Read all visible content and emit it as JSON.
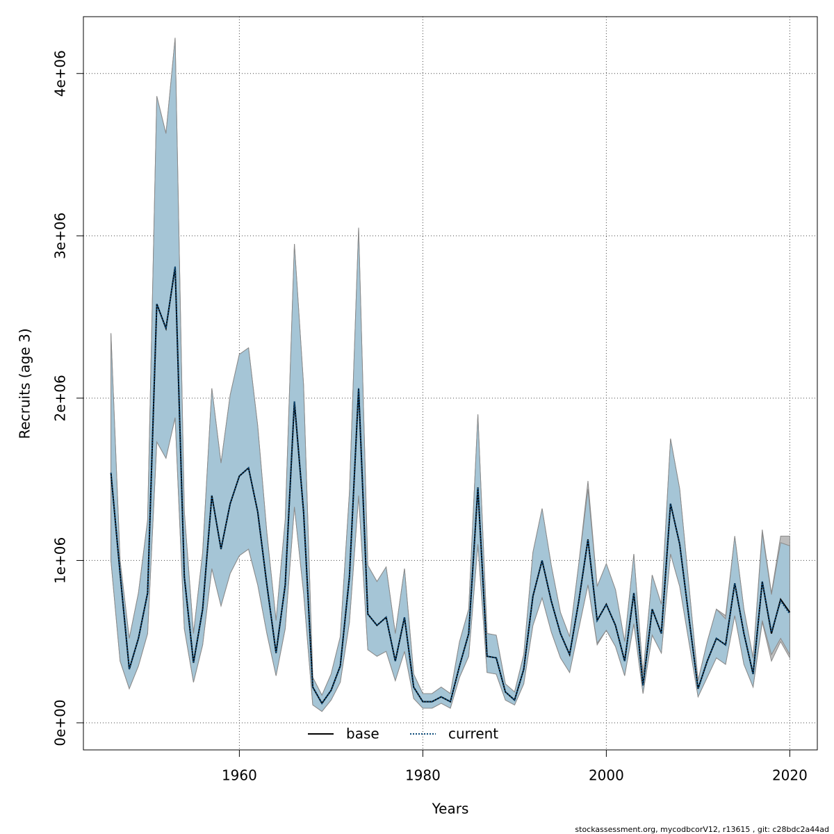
{
  "chart_data": {
    "type": "line",
    "xlabel": "Years",
    "ylabel": "Recruits (age 3)",
    "footer": "stockassessment.org, mycodbcorV12, r13615 , git: c28bdc2a44ad",
    "x": [
      1946,
      1947,
      1948,
      1949,
      1950,
      1951,
      1952,
      1953,
      1954,
      1955,
      1956,
      1957,
      1958,
      1959,
      1960,
      1961,
      1962,
      1963,
      1964,
      1965,
      1966,
      1967,
      1968,
      1969,
      1970,
      1971,
      1972,
      1973,
      1974,
      1975,
      1976,
      1977,
      1978,
      1979,
      1980,
      1981,
      1982,
      1983,
      1984,
      1985,
      1986,
      1987,
      1988,
      1989,
      1990,
      1991,
      1992,
      1993,
      1994,
      1995,
      1996,
      1997,
      1998,
      1999,
      2000,
      2001,
      2002,
      2003,
      2004,
      2005,
      2006,
      2007,
      2008,
      2009,
      2010,
      2011,
      2012,
      2013,
      2014,
      2015,
      2016,
      2017,
      2018,
      2019,
      2020
    ],
    "xlim": [
      1943,
      2023
    ],
    "ylim": [
      -167000,
      4350000
    ],
    "xticks": [
      1960,
      1980,
      2000,
      2020
    ],
    "yticks": [
      {
        "value": 0,
        "label": "0e+00"
      },
      {
        "value": 1000000,
        "label": "1e+06"
      },
      {
        "value": 2000000,
        "label": "2e+06"
      },
      {
        "value": 3000000,
        "label": "3e+06"
      },
      {
        "value": 4000000,
        "label": "4e+06"
      }
    ],
    "grid": true,
    "legend": "bottom",
    "series": [
      {
        "name": "base",
        "color": "#000000",
        "band_color": "#bdbdbd",
        "dash": false,
        "values": [
          1540000,
          920000,
          330000,
          520000,
          800000,
          2580000,
          2430000,
          2810000,
          900000,
          370000,
          700000,
          1400000,
          1070000,
          1350000,
          1520000,
          1570000,
          1300000,
          850000,
          430000,
          850000,
          1980000,
          1300000,
          220000,
          120000,
          200000,
          350000,
          900000,
          2060000,
          670000,
          600000,
          650000,
          380000,
          650000,
          220000,
          130000,
          130000,
          160000,
          130000,
          350000,
          550000,
          1450000,
          410000,
          400000,
          190000,
          140000,
          330000,
          780000,
          1000000,
          750000,
          550000,
          420000,
          750000,
          1130000,
          630000,
          730000,
          600000,
          380000,
          800000,
          230000,
          700000,
          550000,
          1350000,
          1100000,
          650000,
          210000,
          380000,
          520000,
          480000,
          860000,
          550000,
          300000,
          870000,
          550000,
          760000,
          680000
        ],
        "upper": [
          2400000,
          1000000,
          520000,
          800000,
          1250000,
          3860000,
          3630000,
          4220000,
          1300000,
          550000,
          1050000,
          2060000,
          1600000,
          2020000,
          2270000,
          2310000,
          1830000,
          1170000,
          630000,
          1250000,
          2950000,
          2080000,
          280000,
          170000,
          300000,
          530000,
          1420000,
          3050000,
          970000,
          870000,
          960000,
          550000,
          950000,
          300000,
          180000,
          180000,
          220000,
          180000,
          500000,
          700000,
          1900000,
          550000,
          540000,
          240000,
          190000,
          420000,
          1050000,
          1320000,
          970000,
          680000,
          530000,
          980000,
          1490000,
          840000,
          980000,
          820000,
          500000,
          1040000,
          300000,
          910000,
          730000,
          1750000,
          1440000,
          850000,
          260000,
          500000,
          700000,
          660000,
          1150000,
          700000,
          400000,
          1190000,
          800000,
          1150000,
          1150000
        ],
        "lower": [
          1000000,
          380000,
          210000,
          350000,
          550000,
          1730000,
          1630000,
          1880000,
          580000,
          250000,
          480000,
          950000,
          720000,
          920000,
          1030000,
          1070000,
          850000,
          550000,
          290000,
          580000,
          1330000,
          800000,
          110000,
          70000,
          140000,
          250000,
          620000,
          1400000,
          450000,
          410000,
          440000,
          260000,
          440000,
          150000,
          90000,
          90000,
          120000,
          90000,
          280000,
          410000,
          1100000,
          310000,
          300000,
          140000,
          110000,
          240000,
          600000,
          770000,
          560000,
          400000,
          310000,
          580000,
          850000,
          480000,
          570000,
          470000,
          290000,
          610000,
          180000,
          540000,
          430000,
          1040000,
          840000,
          500000,
          160000,
          280000,
          400000,
          360000,
          660000,
          360000,
          220000,
          620000,
          380000,
          500000,
          400000
        ]
      },
      {
        "name": "current",
        "color": "#0b4a7a",
        "band_color": "#a3c5d7",
        "dash": true,
        "values": [
          1540000,
          920000,
          330000,
          520000,
          800000,
          2580000,
          2430000,
          2810000,
          900000,
          370000,
          700000,
          1400000,
          1070000,
          1350000,
          1520000,
          1570000,
          1300000,
          850000,
          430000,
          850000,
          1980000,
          1300000,
          220000,
          120000,
          200000,
          350000,
          900000,
          2060000,
          670000,
          600000,
          650000,
          380000,
          650000,
          220000,
          130000,
          130000,
          160000,
          130000,
          350000,
          550000,
          1450000,
          410000,
          400000,
          190000,
          140000,
          330000,
          780000,
          1000000,
          750000,
          550000,
          420000,
          750000,
          1130000,
          630000,
          730000,
          600000,
          380000,
          800000,
          230000,
          700000,
          550000,
          1350000,
          1100000,
          650000,
          210000,
          380000,
          520000,
          480000,
          860000,
          550000,
          300000,
          870000,
          560000,
          750000,
          670000
        ],
        "upper": [
          2400000,
          1000000,
          520000,
          800000,
          1250000,
          3860000,
          3630000,
          4220000,
          1300000,
          550000,
          1050000,
          2060000,
          1600000,
          2020000,
          2270000,
          2310000,
          1830000,
          1170000,
          630000,
          1250000,
          2950000,
          2080000,
          280000,
          170000,
          300000,
          530000,
          1420000,
          3050000,
          970000,
          870000,
          960000,
          550000,
          950000,
          300000,
          180000,
          180000,
          220000,
          180000,
          500000,
          700000,
          1900000,
          550000,
          540000,
          240000,
          190000,
          420000,
          1050000,
          1320000,
          970000,
          680000,
          530000,
          980000,
          1440000,
          840000,
          980000,
          820000,
          500000,
          1040000,
          300000,
          910000,
          730000,
          1750000,
          1440000,
          850000,
          260000,
          500000,
          700000,
          640000,
          1150000,
          700000,
          400000,
          1170000,
          790000,
          1110000,
          1090000
        ],
        "lower": [
          1000000,
          380000,
          210000,
          350000,
          550000,
          1730000,
          1630000,
          1880000,
          580000,
          250000,
          480000,
          950000,
          720000,
          920000,
          1030000,
          1070000,
          850000,
          550000,
          290000,
          580000,
          1330000,
          800000,
          110000,
          70000,
          140000,
          250000,
          620000,
          1400000,
          450000,
          410000,
          440000,
          260000,
          440000,
          150000,
          90000,
          90000,
          120000,
          90000,
          280000,
          410000,
          1100000,
          310000,
          300000,
          140000,
          110000,
          240000,
          600000,
          770000,
          560000,
          400000,
          310000,
          580000,
          850000,
          490000,
          570000,
          470000,
          290000,
          610000,
          180000,
          540000,
          430000,
          1040000,
          840000,
          500000,
          160000,
          280000,
          400000,
          360000,
          660000,
          360000,
          220000,
          630000,
          420000,
          520000,
          420000
        ]
      }
    ]
  }
}
